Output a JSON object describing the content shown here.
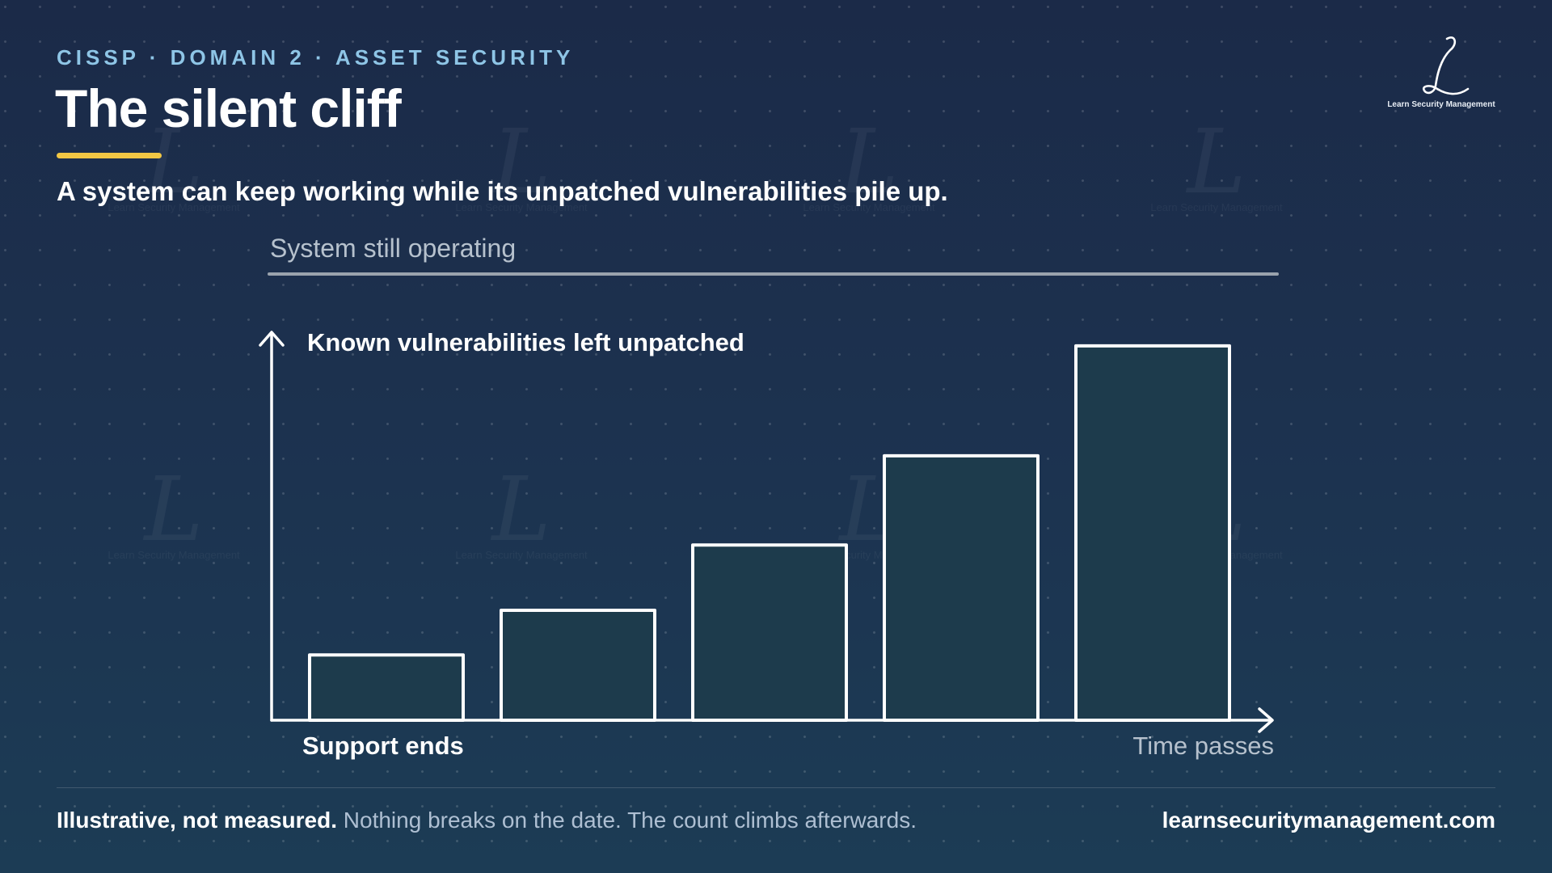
{
  "header": {
    "kicker": "CISSP · DOMAIN 2 · ASSET SECURITY",
    "title": "The silent cliff",
    "subtitle": "A system can keep working while its unpatched vulnerabilities pile up."
  },
  "brand": {
    "logo_glyph": "L",
    "logo_text": "Learn Security Management",
    "watermark_text": "Learn Security Management"
  },
  "chart_data": {
    "type": "bar",
    "top_band_label": "System still operating",
    "ylabel": "Known vulnerabilities left unpatched",
    "x_start_label": "Support ends",
    "x_end_label": "Time passes",
    "categories": [
      "",
      "",
      "",
      "",
      ""
    ],
    "values": [
      82,
      138,
      220,
      332,
      470
    ],
    "ylim": [
      0,
      480
    ],
    "grid": false,
    "legend": "none"
  },
  "footer": {
    "bold": "Illustrative, not measured.",
    "note": "Nothing breaks on the date. The count climbs afterwards.",
    "site": "learnsecuritymanagement.com"
  },
  "colors": {
    "background_top": "#1b2a48",
    "background_bottom": "#1c3c55",
    "accent_yellow": "#f2c744",
    "kicker_blue": "#8ec5e6",
    "bar_fill": "#1d3b4c",
    "bar_stroke": "#ffffff",
    "band_line": "#9aa3ad"
  }
}
